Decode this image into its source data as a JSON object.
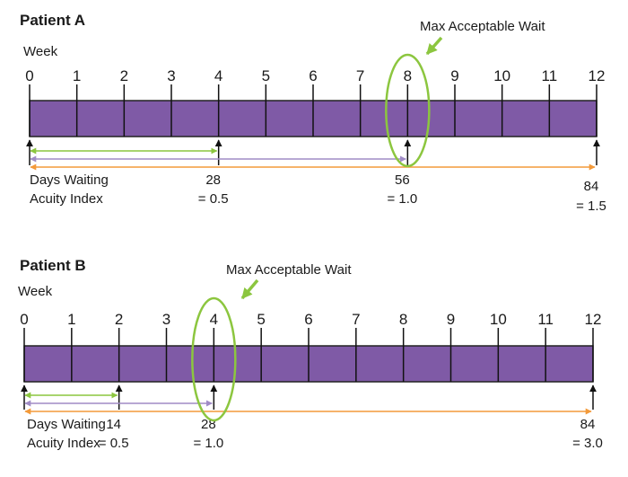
{
  "colors": {
    "bar": "#7f5aa6",
    "bar_border": "#222222",
    "green": "#8cc63f",
    "purple_arrow": "#a08cc6",
    "orange": "#f39a3a",
    "text": "#1a1a1a"
  },
  "patients": [
    {
      "title": "Patient A",
      "week_label": "Week",
      "max_wait_label": "Max Acceptable Wait",
      "max_wait_week": 8,
      "row_label_1": "Days Waiting",
      "row_label_2": "Acuity Index",
      "weeks": [
        "0",
        "1",
        "2",
        "3",
        "4",
        "5",
        "6",
        "7",
        "8",
        "9",
        "10",
        "11",
        "12"
      ],
      "markers": [
        {
          "week": 4,
          "days": "28",
          "index": "= 0.5"
        },
        {
          "week": 8,
          "days": "56",
          "index": "= 1.0"
        },
        {
          "week": 12,
          "days": "84",
          "index": "= 1.5"
        }
      ]
    },
    {
      "title": "Patient B",
      "week_label": "Week",
      "max_wait_label": "Max Acceptable Wait",
      "max_wait_week": 4,
      "row_label_1": "Days Waiting",
      "row_label_2": "Acuity Index",
      "weeks": [
        "0",
        "1",
        "2",
        "3",
        "4",
        "5",
        "6",
        "7",
        "8",
        "9",
        "10",
        "11",
        "12"
      ],
      "markers": [
        {
          "week": 2,
          "days": "14",
          "index": "= 0.5"
        },
        {
          "week": 4,
          "days": "28",
          "index": "= 1.0"
        },
        {
          "week": 12,
          "days": "84",
          "index": "= 3.0"
        }
      ]
    }
  ]
}
